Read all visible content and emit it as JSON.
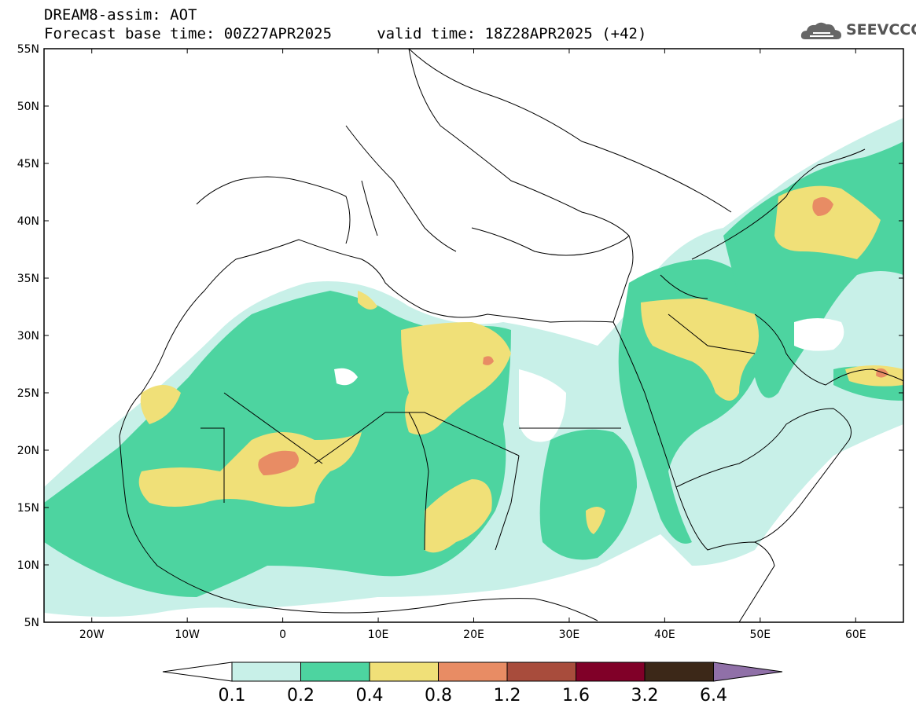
{
  "header": {
    "line1": "DREAM8-assim: AOT",
    "line2": "Forecast base time: 00Z27APR2025     valid time: 18Z28APR2025 (+42)"
  },
  "logo": {
    "text": "SEEVCCC",
    "icon": "cloud-logo-icon"
  },
  "map": {
    "lat_ticks": [
      {
        "label": "55N",
        "value": 55
      },
      {
        "label": "50N",
        "value": 50
      },
      {
        "label": "45N",
        "value": 45
      },
      {
        "label": "40N",
        "value": 40
      },
      {
        "label": "35N",
        "value": 35
      },
      {
        "label": "30N",
        "value": 30
      },
      {
        "label": "25N",
        "value": 25
      },
      {
        "label": "20N",
        "value": 20
      },
      {
        "label": "15N",
        "value": 15
      },
      {
        "label": "10N",
        "value": 10
      },
      {
        "label": "5N",
        "value": 5
      }
    ],
    "lon_ticks": [
      {
        "label": "20W",
        "value": -20
      },
      {
        "label": "10W",
        "value": -10
      },
      {
        "label": "0",
        "value": 0
      },
      {
        "label": "10E",
        "value": 10
      },
      {
        "label": "20E",
        "value": 20
      },
      {
        "label": "30E",
        "value": 30
      },
      {
        "label": "40E",
        "value": 40
      },
      {
        "label": "50E",
        "value": 50
      },
      {
        "label": "60E",
        "value": 60
      }
    ],
    "lon_range": [
      -25,
      65
    ],
    "lat_range": [
      5,
      55
    ]
  },
  "colorbar": {
    "levels": [
      "0.1",
      "0.2",
      "0.4",
      "0.8",
      "1.2",
      "1.6",
      "3.2",
      "6.4"
    ],
    "colors": [
      "#ffffff",
      "#c8f0e8",
      "#4dd4a0",
      "#f0e078",
      "#e88c64",
      "#a84c3c",
      "#800028",
      "#3c2818",
      "#9070a8"
    ]
  }
}
